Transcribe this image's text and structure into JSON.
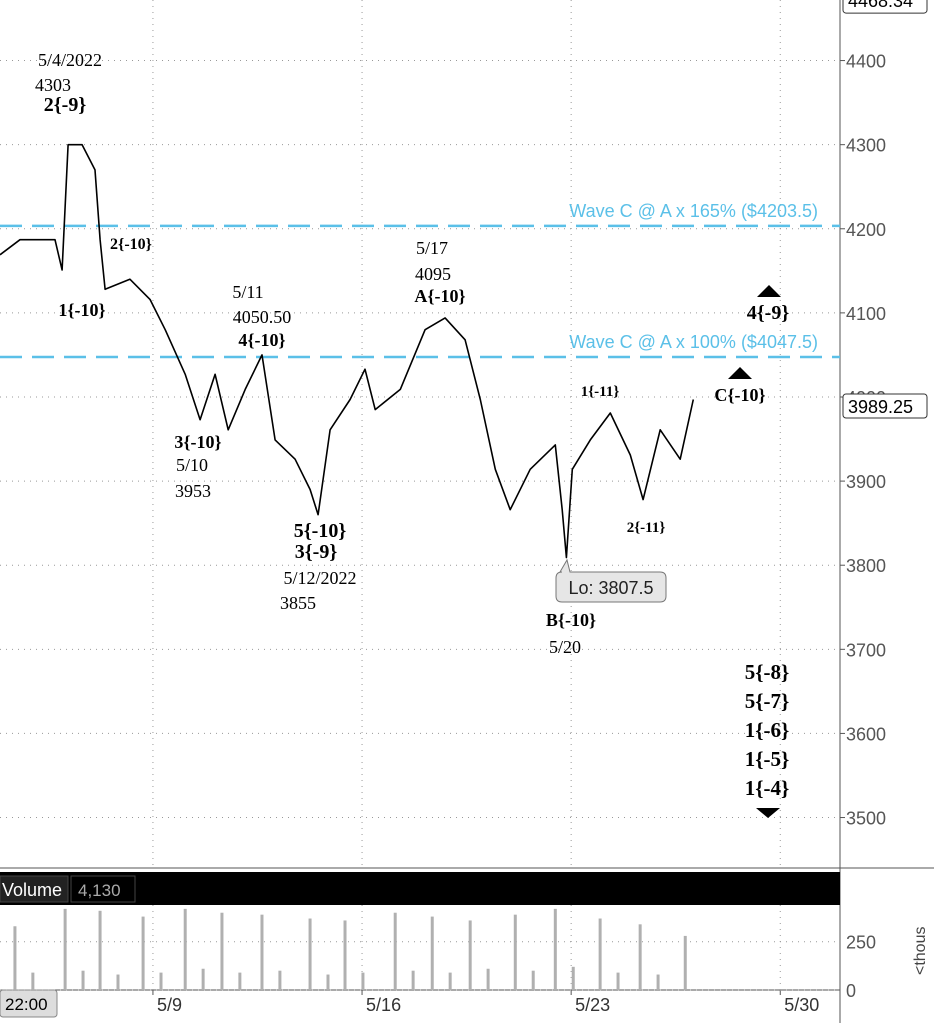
{
  "chart_data": {
    "type": "line",
    "x": [
      3.88,
      4.55,
      5.72,
      5.96,
      6.16,
      6.63,
      7.06,
      7.23,
      7.4,
      8.23,
      8.9,
      9.41,
      10.08,
      10.58,
      11.08,
      11.52,
      12.09,
      12.65,
      13.09,
      13.76,
      14.26,
      14.53,
      14.93,
      15.6,
      16.1,
      16.44,
      17.28,
      18.11,
      18.78,
      19.45,
      19.96,
      20.46,
      20.96,
      21.63,
      22.47,
      22.7,
      22.84,
      23.04,
      23.64,
      24.31,
      24.98,
      25.41,
      25.98,
      26.65,
      27.09
    ],
    "series": [
      {
        "name": "Price",
        "color": "#000000",
        "values": [
          4169,
          4187,
          4187,
          4151,
          4300,
          4300,
          4270,
          4187,
          4128,
          4140,
          4116,
          4080,
          4027,
          3973,
          4027,
          3961,
          4009,
          4050,
          3949,
          3926,
          3890,
          3860,
          3961,
          3997,
          4033,
          3985,
          4009,
          4080,
          4094,
          4068,
          3997,
          3914,
          3866,
          3914,
          3943,
          3866,
          3809,
          3914,
          3949,
          3981,
          3931,
          3878,
          3961,
          3926,
          3997
        ]
      }
    ],
    "xlim": [
      3.88,
      32.0
    ],
    "xticks": [
      {
        "value": 9,
        "label": "5/9"
      },
      {
        "value": 16,
        "label": "5/16"
      },
      {
        "value": 23,
        "label": "5/23"
      },
      {
        "value": 30,
        "label": "5/30"
      }
    ],
    "ylim": [
      3440,
      4472
    ],
    "yticks": [
      3500,
      3600,
      3700,
      3800,
      3900,
      4000,
      4100,
      4200,
      4300,
      4400
    ],
    "grid": true,
    "levels": [
      {
        "value": 4203.5,
        "label": "Wave C @ A x 165% ($4203.5)",
        "color": "#5bc0e8"
      },
      {
        "value": 4047.5,
        "label": "Wave C @ A x 100% ($4047.5)",
        "color": "#5bc0e8"
      }
    ],
    "last_price": 3989.25,
    "high_price": 4468.34,
    "low_label": "Lo: 3807.5",
    "time_label": "22:00",
    "annotations": [
      {
        "lines": [
          "5/4/2022",
          "4303",
          "2{-9}"
        ]
      },
      {
        "lines": [
          "2{-10}"
        ]
      },
      {
        "lines": [
          "1{-10}"
        ]
      },
      {
        "lines": [
          "5/11",
          "4050.50",
          "4{-10}"
        ]
      },
      {
        "lines": [
          "3{-10}",
          "5/10",
          "3953"
        ]
      },
      {
        "lines": [
          "5{-10}",
          "3{-9}",
          "5/12/2022",
          "3855"
        ]
      },
      {
        "lines": [
          "5/17",
          "4095",
          "A{-10}"
        ]
      },
      {
        "lines": [
          "1{-11}"
        ]
      },
      {
        "lines": [
          "2{-11}"
        ]
      },
      {
        "lines": [
          "B{-10}",
          "5/20"
        ]
      },
      {
        "lines": [
          "4{-9}",
          "C{-10}"
        ]
      },
      {
        "lines": [
          "5{-8}",
          "5{-7}",
          "1{-6}",
          "1{-5}",
          "1{-4}"
        ]
      }
    ],
    "volume": {
      "title": "Volume",
      "last": "4,130",
      "axis_unit": "<thous",
      "color": "#b0b0b0",
      "x": [
        4.38,
        4.98,
        6.06,
        6.66,
        7.23,
        7.83,
        8.67,
        9.27,
        10.08,
        10.68,
        11.31,
        11.91,
        12.65,
        13.25,
        14.26,
        14.86,
        15.43,
        16.03,
        17.11,
        17.71,
        18.35,
        18.95,
        19.62,
        20.22,
        21.13,
        21.73,
        22.47,
        23.07,
        23.97,
        24.57,
        25.31,
        25.91,
        26.82
      ],
      "values": [
        330,
        90,
        420,
        100,
        410,
        80,
        380,
        90,
        420,
        110,
        400,
        90,
        390,
        100,
        370,
        80,
        360,
        90,
        400,
        100,
        380,
        90,
        360,
        110,
        390,
        100,
        420,
        120,
        370,
        90,
        340,
        80,
        280
      ],
      "ylim": [
        0,
        440
      ],
      "yticks": [
        0,
        250
      ]
    }
  }
}
